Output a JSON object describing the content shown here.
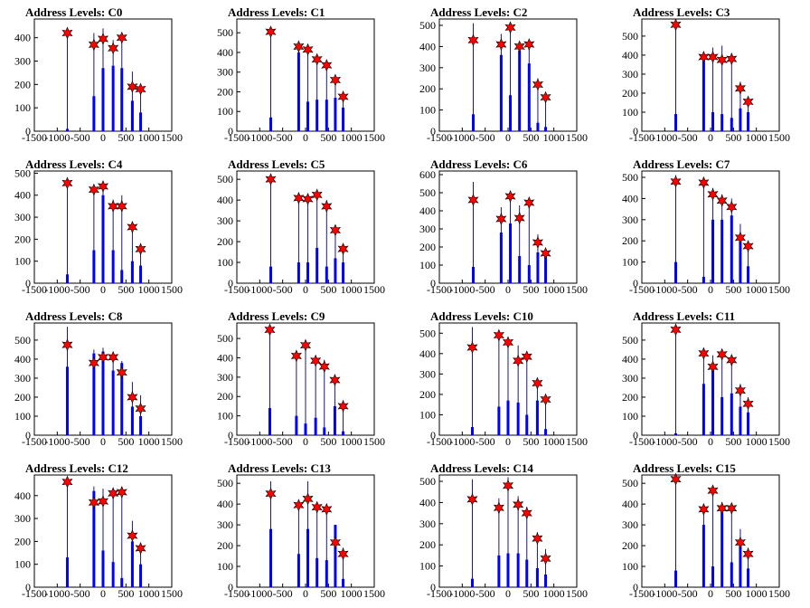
{
  "chart_data": [
    {
      "type": "bar",
      "title": "Address Levels: C0",
      "xlim": [
        -1500,
        1500
      ],
      "ylim": [
        0,
        480
      ],
      "xticks": [
        -1500,
        -1000,
        -500,
        0,
        500,
        1000,
        1500
      ],
      "yticks": [
        0,
        100,
        200,
        300,
        400
      ],
      "x": [
        -780,
        -200,
        0,
        220,
        410,
        640,
        820
      ],
      "peaks": [
        440,
        420,
        440,
        390,
        410,
        255,
        190
      ],
      "base": [
        10,
        150,
        270,
        280,
        270,
        130,
        80
      ],
      "stars": [
        420,
        370,
        395,
        355,
        400,
        190,
        180
      ]
    },
    {
      "type": "bar",
      "title": "Address Levels: C1",
      "xlim": [
        -1500,
        1500
      ],
      "ylim": [
        0,
        570
      ],
      "xticks": [
        -1500,
        -1000,
        -500,
        0,
        500,
        1000,
        1500
      ],
      "yticks": [
        0,
        100,
        200,
        300,
        400,
        500
      ],
      "x": [
        -760,
        -150,
        50,
        250,
        460,
        650,
        820
      ],
      "peaks": [
        510,
        450,
        440,
        380,
        350,
        270,
        180
      ],
      "base": [
        70,
        400,
        150,
        160,
        160,
        170,
        120
      ],
      "stars": [
        505,
        430,
        415,
        365,
        335,
        260,
        175
      ]
    },
    {
      "type": "bar",
      "title": "Address Levels: C2",
      "xlim": [
        -1500,
        1500
      ],
      "ylim": [
        0,
        530
      ],
      "xticks": [
        -1500,
        -1000,
        -500,
        0,
        500,
        1000,
        1500
      ],
      "yticks": [
        0,
        100,
        200,
        300,
        400,
        500
      ],
      "x": [
        -760,
        -150,
        50,
        250,
        460,
        650,
        820
      ],
      "peaks": [
        510,
        460,
        500,
        420,
        430,
        250,
        180
      ],
      "base": [
        80,
        360,
        170,
        380,
        320,
        40,
        20
      ],
      "stars": [
        430,
        410,
        490,
        400,
        410,
        220,
        160
      ]
    },
    {
      "type": "bar",
      "title": "Address Levels: C3",
      "xlim": [
        -1500,
        1500
      ],
      "ylim": [
        0,
        590
      ],
      "xticks": [
        -1500,
        -1000,
        -500,
        0,
        500,
        1000,
        1500
      ],
      "yticks": [
        0,
        100,
        200,
        300,
        400,
        500
      ],
      "x": [
        -760,
        -150,
        50,
        250,
        460,
        650,
        820
      ],
      "peaks": [
        580,
        410,
        440,
        450,
        410,
        260,
        180
      ],
      "base": [
        90,
        390,
        100,
        90,
        70,
        120,
        100
      ],
      "stars": [
        560,
        390,
        390,
        375,
        380,
        225,
        155
      ]
    },
    {
      "type": "bar",
      "title": "Address Levels: C4",
      "xlim": [
        -1500,
        1500
      ],
      "ylim": [
        0,
        510
      ],
      "xticks": [
        -1500,
        -1000,
        -500,
        0,
        500,
        1000,
        1500
      ],
      "yticks": [
        0,
        100,
        200,
        300,
        400,
        500
      ],
      "x": [
        -780,
        -200,
        0,
        220,
        410,
        640,
        820
      ],
      "peaks": [
        470,
        430,
        460,
        380,
        400,
        270,
        180
      ],
      "base": [
        40,
        150,
        400,
        150,
        60,
        100,
        80
      ],
      "stars": [
        455,
        425,
        440,
        350,
        350,
        255,
        155
      ]
    },
    {
      "type": "bar",
      "title": "Address Levels: C5",
      "xlim": [
        -1500,
        1500
      ],
      "ylim": [
        0,
        540
      ],
      "xticks": [
        -1500,
        -1000,
        -500,
        0,
        500,
        1000,
        1500
      ],
      "yticks": [
        0,
        100,
        200,
        300,
        400,
        500
      ],
      "x": [
        -760,
        -150,
        50,
        250,
        460,
        650,
        820
      ],
      "peaks": [
        510,
        430,
        430,
        440,
        400,
        270,
        180
      ],
      "base": [
        80,
        100,
        100,
        170,
        80,
        120,
        100
      ],
      "stars": [
        500,
        410,
        405,
        425,
        370,
        255,
        165
      ]
    },
    {
      "type": "bar",
      "title": "Address Levels: C6",
      "xlim": [
        -1500,
        1500
      ],
      "ylim": [
        0,
        620
      ],
      "xticks": [
        -1500,
        -1000,
        -500,
        0,
        500,
        1000,
        1500
      ],
      "yticks": [
        0,
        100,
        200,
        300,
        400,
        500,
        600
      ],
      "x": [
        -760,
        -150,
        50,
        250,
        460,
        650,
        820
      ],
      "peaks": [
        560,
        420,
        480,
        430,
        460,
        270,
        190
      ],
      "base": [
        90,
        280,
        330,
        150,
        100,
        170,
        150
      ],
      "stars": [
        460,
        355,
        480,
        360,
        445,
        225,
        165
      ]
    },
    {
      "type": "bar",
      "title": "Address Levels: C7",
      "xlim": [
        -1500,
        1500
      ],
      "ylim": [
        0,
        530
      ],
      "xticks": [
        -1500,
        -1000,
        -500,
        0,
        500,
        1000,
        1500
      ],
      "yticks": [
        0,
        100,
        200,
        300,
        400,
        500
      ],
      "x": [
        -760,
        -150,
        50,
        250,
        460,
        650,
        820
      ],
      "peaks": [
        510,
        500,
        450,
        420,
        400,
        280,
        190
      ],
      "base": [
        100,
        30,
        300,
        300,
        320,
        220,
        80
      ],
      "stars": [
        480,
        475,
        420,
        390,
        360,
        215,
        175
      ]
    },
    {
      "type": "bar",
      "title": "Address Levels: C8",
      "xlim": [
        -1500,
        1500
      ],
      "ylim": [
        0,
        590
      ],
      "xticks": [
        -1500,
        -1000,
        -500,
        0,
        500,
        1000,
        1500
      ],
      "yticks": [
        0,
        100,
        200,
        300,
        400,
        500
      ],
      "x": [
        -780,
        -200,
        0,
        220,
        410,
        640,
        820
      ],
      "peaks": [
        570,
        450,
        460,
        430,
        390,
        280,
        210
      ],
      "base": [
        360,
        430,
        440,
        340,
        380,
        150,
        100
      ],
      "stars": [
        475,
        380,
        410,
        410,
        330,
        200,
        140
      ]
    },
    {
      "type": "bar",
      "title": "Address Levels: C9",
      "xlim": [
        -1500,
        1500
      ],
      "ylim": [
        0,
        580
      ],
      "xticks": [
        -1500,
        -1000,
        -500,
        0,
        500,
        1000,
        1500
      ],
      "yticks": [
        0,
        100,
        200,
        300,
        400,
        500
      ],
      "x": [
        -780,
        -200,
        0,
        220,
        410,
        640,
        820
      ],
      "peaks": [
        560,
        420,
        480,
        400,
        390,
        300,
        180
      ],
      "base": [
        140,
        100,
        60,
        90,
        40,
        150,
        20
      ],
      "stars": [
        545,
        410,
        465,
        385,
        355,
        285,
        150
      ]
    },
    {
      "type": "bar",
      "title": "Address Levels: C10",
      "xlim": [
        -1500,
        1500
      ],
      "ylim": [
        0,
        550
      ],
      "xticks": [
        -1500,
        -1000,
        -500,
        0,
        500,
        1000,
        1500
      ],
      "yticks": [
        0,
        100,
        200,
        300,
        400,
        500
      ],
      "x": [
        -780,
        -200,
        0,
        220,
        410,
        640,
        820
      ],
      "peaks": [
        530,
        510,
        460,
        440,
        400,
        280,
        190
      ],
      "base": [
        40,
        140,
        170,
        160,
        100,
        170,
        30
      ],
      "stars": [
        430,
        490,
        455,
        365,
        385,
        255,
        175
      ]
    },
    {
      "type": "bar",
      "title": "Address Levels: C11",
      "xlim": [
        -1500,
        1500
      ],
      "ylim": [
        0,
        590
      ],
      "xticks": [
        -1500,
        -1000,
        -500,
        0,
        500,
        1000,
        1500
      ],
      "yticks": [
        0,
        100,
        200,
        300,
        400,
        500
      ],
      "x": [
        -760,
        -150,
        50,
        250,
        460,
        650,
        820
      ],
      "peaks": [
        560,
        460,
        420,
        450,
        410,
        270,
        200
      ],
      "base": [
        10,
        270,
        350,
        200,
        220,
        150,
        120
      ],
      "stars": [
        555,
        430,
        360,
        425,
        395,
        235,
        165
      ]
    },
    {
      "type": "bar",
      "title": "Address Levels: C12",
      "xlim": [
        -1500,
        1500
      ],
      "ylim": [
        0,
        490
      ],
      "xticks": [
        -1500,
        -1000,
        -500,
        0,
        500,
        1000,
        1500
      ],
      "yticks": [
        0,
        100,
        200,
        300,
        400
      ],
      "x": [
        -780,
        -200,
        0,
        220,
        410,
        640,
        820
      ],
      "peaks": [
        470,
        440,
        430,
        420,
        420,
        290,
        190
      ],
      "base": [
        130,
        420,
        160,
        110,
        40,
        200,
        100
      ],
      "stars": [
        460,
        370,
        375,
        410,
        415,
        225,
        170
      ]
    },
    {
      "type": "bar",
      "title": "Address Levels: C13",
      "xlim": [
        -1500,
        1500
      ],
      "ylim": [
        0,
        540
      ],
      "xticks": [
        -1500,
        -1000,
        -500,
        0,
        500,
        1000,
        1500
      ],
      "yticks": [
        0,
        100,
        200,
        300,
        400,
        500
      ],
      "x": [
        -760,
        -150,
        50,
        250,
        460,
        650,
        820
      ],
      "peaks": [
        510,
        420,
        510,
        410,
        380,
        300,
        190
      ],
      "base": [
        280,
        160,
        280,
        140,
        130,
        300,
        40
      ],
      "stars": [
        450,
        395,
        425,
        385,
        375,
        215,
        160
      ]
    },
    {
      "type": "bar",
      "title": "Address Levels: C14",
      "xlim": [
        -1500,
        1500
      ],
      "ylim": [
        0,
        530
      ],
      "xticks": [
        -1500,
        -1000,
        -500,
        0,
        500,
        1000,
        1500
      ],
      "yticks": [
        0,
        100,
        200,
        300,
        400,
        500
      ],
      "x": [
        -780,
        -200,
        0,
        220,
        410,
        640,
        820
      ],
      "peaks": [
        510,
        420,
        520,
        430,
        380,
        260,
        180
      ],
      "base": [
        40,
        150,
        160,
        160,
        130,
        90,
        60
      ],
      "stars": [
        415,
        375,
        480,
        390,
        350,
        230,
        135
      ]
    },
    {
      "type": "bar",
      "title": "Address Levels: C15",
      "xlim": [
        -1500,
        1500
      ],
      "ylim": [
        0,
        540
      ],
      "xticks": [
        -1500,
        -1000,
        -500,
        0,
        500,
        1000,
        1500
      ],
      "yticks": [
        0,
        100,
        200,
        300,
        400,
        500
      ],
      "x": [
        -760,
        -150,
        50,
        250,
        460,
        650,
        820
      ],
      "peaks": [
        540,
        400,
        460,
        410,
        400,
        280,
        190
      ],
      "base": [
        80,
        300,
        100,
        380,
        120,
        210,
        90
      ],
      "stars": [
        520,
        375,
        465,
        380,
        380,
        215,
        160
      ]
    }
  ]
}
